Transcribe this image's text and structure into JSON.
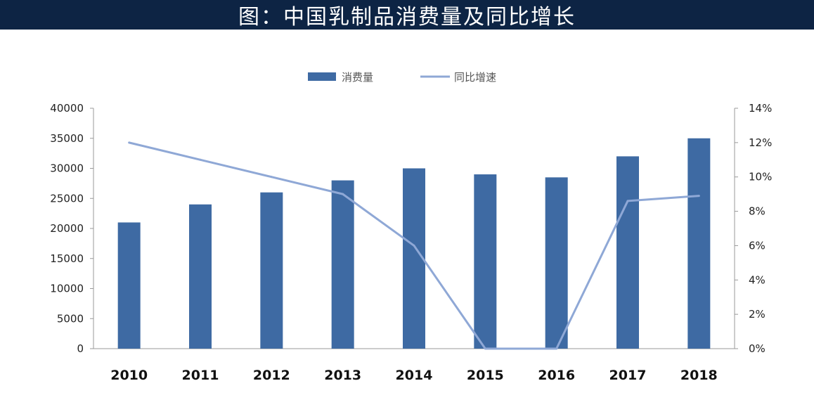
{
  "title": "图：中国乳制品消费量及同比增长",
  "colors": {
    "title_bg": "#0d2444",
    "bar": "#3e6aa3",
    "line": "#8fa8d6"
  },
  "chart_data": {
    "type": "bar",
    "categories": [
      "2010",
      "2011",
      "2012",
      "2013",
      "2014",
      "2015",
      "2016",
      "2017",
      "2018"
    ],
    "series": [
      {
        "name": "消费量",
        "type": "bar",
        "axis": "left",
        "values": [
          21000,
          24000,
          26000,
          28000,
          30000,
          29000,
          28500,
          32000,
          35000
        ]
      },
      {
        "name": "同比增速",
        "type": "line",
        "axis": "right",
        "values": [
          12.0,
          11.0,
          10.0,
          9.0,
          6.0,
          0.0,
          0.0,
          8.6,
          8.9
        ]
      }
    ],
    "left_axis": {
      "min": 0,
      "max": 40000,
      "ticks": [
        "0",
        "5000",
        "10000",
        "15000",
        "20000",
        "25000",
        "30000",
        "35000",
        "40000"
      ]
    },
    "right_axis": {
      "min": 0,
      "max": 14,
      "ticks": [
        "0%",
        "2%",
        "4%",
        "6%",
        "8%",
        "10%",
        "12%",
        "14%"
      ]
    },
    "legend_position": "top-center",
    "grid": false
  }
}
